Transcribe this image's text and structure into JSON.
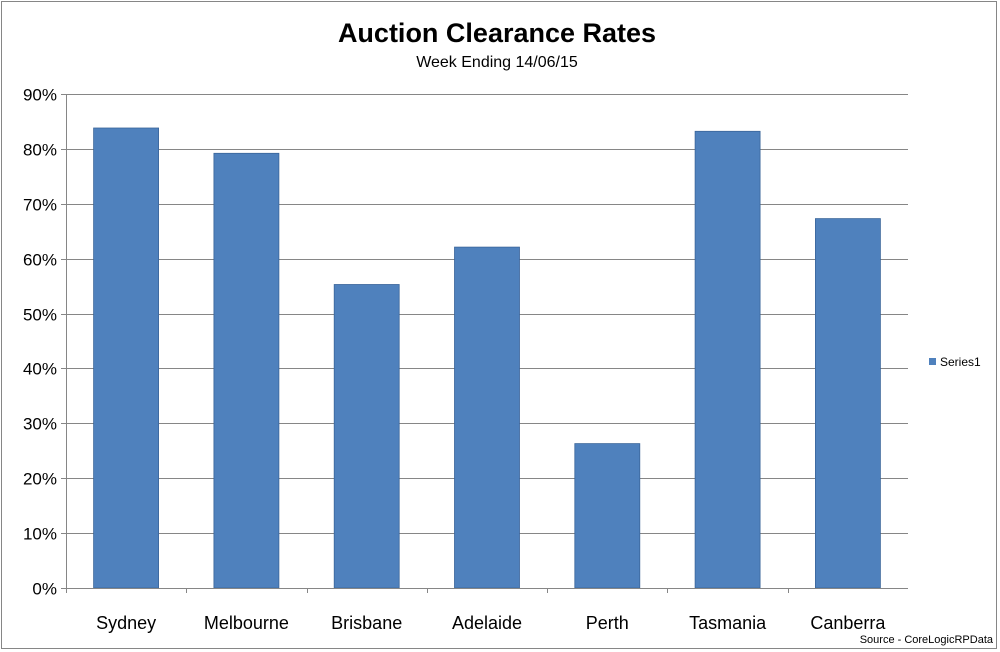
{
  "chart_data": {
    "type": "bar",
    "title": "Auction Clearance Rates",
    "subtitle": "Week Ending 14/06/15",
    "categories": [
      "Sydney",
      "Melbourne",
      "Brisbane",
      "Adelaide",
      "Perth",
      "Tasmania",
      "Canberra"
    ],
    "series": [
      {
        "name": "Series1",
        "values": [
          83.8,
          79.2,
          55.3,
          62.1,
          26.3,
          83.2,
          67.3
        ],
        "color": "#4f81bd"
      }
    ],
    "ylim": [
      0,
      90
    ],
    "yticks": [
      "0%",
      "10%",
      "20%",
      "30%",
      "40%",
      "50%",
      "60%",
      "70%",
      "80%",
      "90%"
    ],
    "grid": true,
    "legend_position": "right",
    "source": "Source - CoreLogicRPData"
  }
}
